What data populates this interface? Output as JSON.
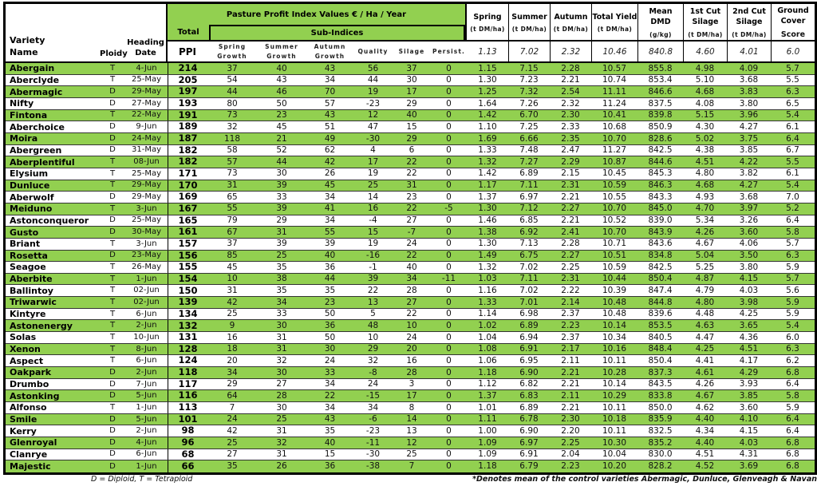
{
  "colors": {
    "header_green": "#92D050",
    "row_green": "#92D050",
    "border": "#000000"
  },
  "header": {
    "title": "Pasture Profit Index Values € / Ha / Year",
    "total": "Total",
    "sub_indices": "Sub-Indices",
    "variety_name": "Variety\nName",
    "ploidy": "Ploidy",
    "heading_date": "Heading\nDate",
    "ppi": "PPI",
    "sub_columns": [
      "Spring\nGrowth",
      "Summer\nGrowth",
      "Autumn\nGrowth",
      "Quality",
      "Silage",
      "Persist."
    ],
    "right_columns": [
      {
        "label": "Spring",
        "unit": "(t DM/ha)",
        "control": "1.13"
      },
      {
        "label": "Summer",
        "unit": "(t DM/ha)",
        "control": "7.02"
      },
      {
        "label": "Autumn",
        "unit": "(t DM/ha)",
        "control": "2.32"
      },
      {
        "label": "Total Yield",
        "unit": "(t DM/ha)",
        "control": "10.46"
      },
      {
        "label": "Mean\nDMD",
        "unit": "(g/kg)",
        "control": "840.8"
      },
      {
        "label": "1st Cut\nSilage",
        "unit": "(t DM/ha)",
        "control": "4.60"
      },
      {
        "label": "2nd Cut\nSilage",
        "unit": "(t DM/ha)",
        "control": "4.01"
      },
      {
        "label": "Ground\nCover",
        "unit": "Score",
        "control": "6.0"
      }
    ]
  },
  "rows": [
    [
      "Abergain",
      "T",
      "4-Jun",
      "214",
      "37",
      "40",
      "43",
      "56",
      "37",
      "0",
      "1.15",
      "7.15",
      "2.28",
      "10.57",
      "855.8",
      "4.98",
      "4.09",
      "5.7"
    ],
    [
      "Aberclyde",
      "T",
      "25-May",
      "205",
      "54",
      "43",
      "34",
      "44",
      "30",
      "0",
      "1.30",
      "7.23",
      "2.21",
      "10.74",
      "853.4",
      "5.10",
      "3.68",
      "5.5"
    ],
    [
      "Abermagic",
      "D",
      "29-May",
      "197",
      "44",
      "46",
      "70",
      "19",
      "17",
      "0",
      "1.25",
      "7.32",
      "2.54",
      "11.11",
      "846.6",
      "4.68",
      "3.83",
      "6.3"
    ],
    [
      "Nifty",
      "D",
      "27-May",
      "193",
      "80",
      "50",
      "57",
      "-23",
      "29",
      "0",
      "1.64",
      "7.26",
      "2.32",
      "11.24",
      "837.5",
      "4.08",
      "3.80",
      "6.5"
    ],
    [
      "Fintona",
      "T",
      "22-May",
      "191",
      "73",
      "23",
      "43",
      "12",
      "40",
      "0",
      "1.42",
      "6.70",
      "2.30",
      "10.41",
      "839.8",
      "5.15",
      "3.96",
      "5.4"
    ],
    [
      "Aberchoice",
      "D",
      "9-Jun",
      "189",
      "32",
      "45",
      "51",
      "47",
      "15",
      "0",
      "1.10",
      "7.25",
      "2.33",
      "10.68",
      "850.9",
      "4.30",
      "4.27",
      "6.1"
    ],
    [
      "Moira",
      "D",
      "24-May",
      "187",
      "118",
      "21",
      "49",
      "-30",
      "29",
      "0",
      "1.69",
      "6.66",
      "2.35",
      "10.70",
      "828.6",
      "5.02",
      "3.75",
      "6.4"
    ],
    [
      "Abergreen",
      "D",
      "31-May",
      "182",
      "58",
      "52",
      "62",
      "4",
      "6",
      "0",
      "1.33",
      "7.48",
      "2.47",
      "11.27",
      "842.5",
      "4.38",
      "3.85",
      "6.7"
    ],
    [
      "Aberplentiful",
      "T",
      "08-Jun",
      "182",
      "57",
      "44",
      "42",
      "17",
      "22",
      "0",
      "1.32",
      "7.27",
      "2.29",
      "10.87",
      "844.6",
      "4.51",
      "4.22",
      "5.5"
    ],
    [
      "Elysium",
      "T",
      "25-May",
      "171",
      "73",
      "30",
      "26",
      "19",
      "22",
      "0",
      "1.42",
      "6.89",
      "2.15",
      "10.45",
      "845.3",
      "4.80",
      "3.82",
      "6.1"
    ],
    [
      "Dunluce",
      "T",
      "29-May",
      "170",
      "31",
      "39",
      "45",
      "25",
      "31",
      "0",
      "1.17",
      "7.11",
      "2.31",
      "10.59",
      "846.3",
      "4.68",
      "4.27",
      "5.4"
    ],
    [
      "Aberwolf",
      "D",
      "29-May",
      "169",
      "65",
      "33",
      "34",
      "14",
      "23",
      "0",
      "1.37",
      "6.97",
      "2.21",
      "10.55",
      "843.3",
      "4.93",
      "3.68",
      "7.0"
    ],
    [
      "Meiduno",
      "T",
      "3-Jun",
      "167",
      "55",
      "39",
      "41",
      "16",
      "22",
      "-5",
      "1.30",
      "7.12",
      "2.27",
      "10.70",
      "845.0",
      "4.70",
      "3.97",
      "5.2"
    ],
    [
      "Astonconqueror",
      "D",
      "25-May",
      "165",
      "79",
      "29",
      "34",
      "-4",
      "27",
      "0",
      "1.46",
      "6.85",
      "2.21",
      "10.52",
      "839.0",
      "5.34",
      "3.26",
      "6.4"
    ],
    [
      "Gusto",
      "D",
      "30-May",
      "161",
      "67",
      "31",
      "55",
      "15",
      "-7",
      "0",
      "1.38",
      "6.92",
      "2.41",
      "10.70",
      "843.9",
      "4.26",
      "3.60",
      "5.8"
    ],
    [
      "Briant",
      "T",
      "3-Jun",
      "157",
      "37",
      "39",
      "39",
      "19",
      "24",
      "0",
      "1.30",
      "7.13",
      "2.28",
      "10.71",
      "843.6",
      "4.67",
      "4.06",
      "5.7"
    ],
    [
      "Rosetta",
      "D",
      "23-May",
      "156",
      "85",
      "25",
      "40",
      "-16",
      "22",
      "0",
      "1.49",
      "6.75",
      "2.27",
      "10.51",
      "834.8",
      "5.04",
      "3.50",
      "6.3"
    ],
    [
      "Seagoe",
      "T",
      "26-May",
      "155",
      "45",
      "35",
      "36",
      "-1",
      "40",
      "0",
      "1.32",
      "7.02",
      "2.25",
      "10.59",
      "842.5",
      "5.25",
      "3.80",
      "5.9"
    ],
    [
      "Aberbite",
      "T",
      "1-Jun",
      "154",
      "10",
      "38",
      "44",
      "39",
      "34",
      "-11",
      "1.03",
      "7.11",
      "2.31",
      "10.44",
      "850.4",
      "4.87",
      "4.15",
      "5.7"
    ],
    [
      "Ballintoy",
      "T",
      "02-Jun",
      "150",
      "31",
      "35",
      "35",
      "22",
      "28",
      "0",
      "1.16",
      "7.02",
      "2.22",
      "10.39",
      "847.4",
      "4.79",
      "4.03",
      "5.6"
    ],
    [
      "Triwarwic",
      "T",
      "02-Jun",
      "139",
      "42",
      "34",
      "23",
      "13",
      "27",
      "0",
      "1.33",
      "7.01",
      "2.14",
      "10.48",
      "844.8",
      "4.80",
      "3.98",
      "5.9"
    ],
    [
      "Kintyre",
      "T",
      "6-Jun",
      "134",
      "25",
      "33",
      "50",
      "5",
      "22",
      "0",
      "1.14",
      "6.98",
      "2.37",
      "10.48",
      "839.6",
      "4.48",
      "4.25",
      "5.9"
    ],
    [
      "Astonenergy",
      "T",
      "2-Jun",
      "132",
      "9",
      "30",
      "36",
      "48",
      "10",
      "0",
      "1.02",
      "6.89",
      "2.23",
      "10.14",
      "853.5",
      "4.63",
      "3.65",
      "5.4"
    ],
    [
      "Solas",
      "T",
      "10-Jun",
      "131",
      "16",
      "31",
      "50",
      "10",
      "24",
      "0",
      "1.04",
      "6.94",
      "2.37",
      "10.34",
      "840.5",
      "4.47",
      "4.36",
      "6.0"
    ],
    [
      "Xenon",
      "T",
      "8-Jun",
      "128",
      "18",
      "31",
      "30",
      "29",
      "20",
      "0",
      "1.08",
      "6.91",
      "2.17",
      "10.16",
      "848.4",
      "4.25",
      "4.51",
      "6.3"
    ],
    [
      "Aspect",
      "T",
      "6-Jun",
      "124",
      "20",
      "32",
      "24",
      "32",
      "16",
      "0",
      "1.06",
      "6.95",
      "2.11",
      "10.11",
      "850.4",
      "4.41",
      "4.17",
      "6.2"
    ],
    [
      "Oakpark",
      "D",
      "2-Jun",
      "118",
      "34",
      "30",
      "33",
      "-8",
      "28",
      "0",
      "1.18",
      "6.90",
      "2.21",
      "10.28",
      "837.3",
      "4.61",
      "4.29",
      "6.8"
    ],
    [
      "Drumbo",
      "D",
      "7-Jun",
      "117",
      "29",
      "27",
      "34",
      "24",
      "3",
      "0",
      "1.12",
      "6.82",
      "2.21",
      "10.14",
      "843.5",
      "4.26",
      "3.93",
      "6.4"
    ],
    [
      "Astonking",
      "D",
      "5-Jun",
      "116",
      "64",
      "28",
      "22",
      "-15",
      "17",
      "0",
      "1.37",
      "6.83",
      "2.11",
      "10.29",
      "833.8",
      "4.67",
      "3.85",
      "5.8"
    ],
    [
      "Alfonso",
      "T",
      "1-Jun",
      "113",
      "7",
      "30",
      "34",
      "34",
      "8",
      "0",
      "1.01",
      "6.89",
      "2.21",
      "10.11",
      "850.0",
      "4.62",
      "3.60",
      "5.9"
    ],
    [
      "Smile",
      "D",
      "5-Jun",
      "101",
      "24",
      "25",
      "43",
      "-6",
      "14",
      "0",
      "1.11",
      "6.78",
      "2.30",
      "10.18",
      "835.9",
      "4.40",
      "4.10",
      "6.4"
    ],
    [
      "Kerry",
      "D",
      "2-Jun",
      "98",
      "42",
      "31",
      "35",
      "-23",
      "13",
      "0",
      "1.00",
      "6.90",
      "2.20",
      "10.11",
      "832.5",
      "4.34",
      "4.15",
      "6.4"
    ],
    [
      "Glenroyal",
      "D",
      "4-Jun",
      "96",
      "25",
      "32",
      "40",
      "-11",
      "12",
      "0",
      "1.09",
      "6.97",
      "2.25",
      "10.30",
      "835.2",
      "4.40",
      "4.03",
      "6.8"
    ],
    [
      "Clanrye",
      "D",
      "6-Jun",
      "68",
      "27",
      "31",
      "15",
      "-30",
      "25",
      "0",
      "1.09",
      "6.91",
      "2.04",
      "10.04",
      "830.0",
      "4.51",
      "4.31",
      "6.8"
    ],
    [
      "Majestic",
      "D",
      "1-Jun",
      "66",
      "35",
      "26",
      "36",
      "-38",
      "7",
      "0",
      "1.18",
      "6.79",
      "2.23",
      "10.20",
      "828.2",
      "4.52",
      "3.69",
      "6.8"
    ]
  ],
  "footer": {
    "left": "D = Diploid, T = Tetraploid",
    "right": "*Denotes mean of the control varieties Abermagic, Dunluce, Glenveagh & Navan"
  }
}
